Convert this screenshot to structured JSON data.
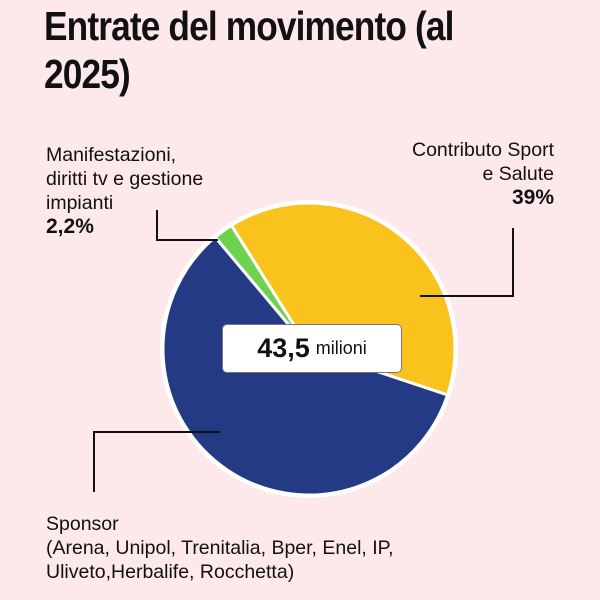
{
  "chart_data": {
    "type": "pie",
    "title": "Entrate del movimento (al 2025)",
    "total_value": "43,5",
    "total_unit": "milioni",
    "slices": [
      {
        "label": "Manifestazioni, diritti tv e gestione impianti",
        "value": 2.2,
        "value_label": "2,2%",
        "color": "#6dd24e"
      },
      {
        "label": "Contributo Sport e Salute",
        "value": 39,
        "value_label": "39%",
        "color": "#f9c21c"
      },
      {
        "label": "Sponsor (Arena, Unipol, Trenitalia, Bper, Enel, IP, Uliveto,Herbalife, Rocchetta)",
        "value": 58.8,
        "value_label": "",
        "color": "#253a84"
      }
    ]
  },
  "labels": {
    "manif": [
      "Manifestazioni,",
      "diritti tv e gestione",
      "impianti"
    ],
    "contributo": [
      "Contributo Sport",
      "e Salute"
    ],
    "sponsor": [
      "Sponsor",
      "(Arena, Unipol, Trenitalia, Bper, Enel, IP,",
      "Uliveto,Herbalife, Rocchetta)"
    ]
  },
  "background": "#fde8ec"
}
